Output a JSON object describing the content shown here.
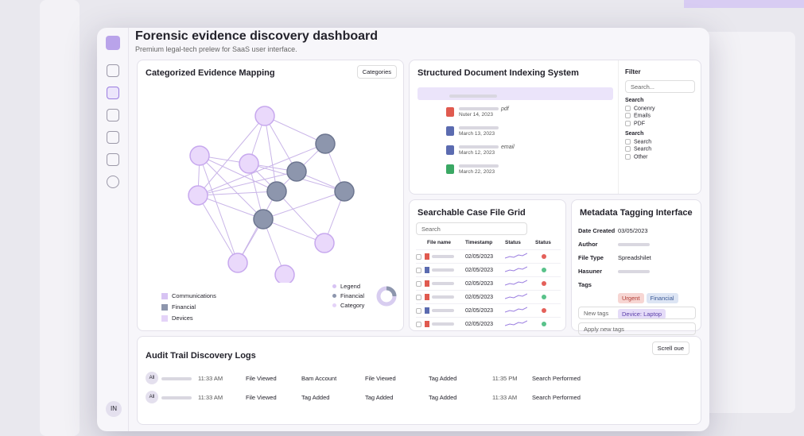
{
  "header": {
    "title": "Forensic evidence discovery dashboard",
    "subtitle": "Premium legal-tech prelew for SaaS user interface."
  },
  "sidebar": {
    "user": "IN"
  },
  "evidence_map": {
    "title": "Categorized Evidence Mapping",
    "button": "Categories",
    "legend": [
      "Communications",
      "Financial",
      "Devices"
    ],
    "legend_right": [
      "Legend",
      "Financial",
      "Category"
    ]
  },
  "indexing": {
    "title": "Structured Document Indexing System",
    "files": [
      {
        "type": "pdf",
        "date": "Nuter 14, 2023"
      },
      {
        "date": "March 13, 2023"
      },
      {
        "type": "email",
        "date": "March 12, 2023"
      },
      {
        "date": "March 22, 2023"
      }
    ]
  },
  "filter": {
    "title": "Filter",
    "search": "Search...",
    "groups": [
      {
        "title": "Search",
        "options": [
          "Conenry",
          "Emails",
          "PDF"
        ]
      },
      {
        "title": "Search",
        "options": [
          "Search",
          "Search",
          "Other"
        ]
      }
    ]
  },
  "case_grid": {
    "title": "Searchable Case File Grid",
    "search": "Search",
    "columns": [
      "File name",
      "Timestamp",
      "Status",
      "Status"
    ],
    "timestamps": [
      "02/05/2023",
      "02/05/2023",
      "02/05/2023",
      "02/05/2023",
      "02/05/2023",
      "02/05/2023"
    ]
  },
  "metadata": {
    "title": "Metadata Tagging Interface",
    "fields": [
      {
        "label": "Date Created",
        "value": "03/05/2023"
      },
      {
        "label": "Author"
      },
      {
        "label": "File Type",
        "value": "Spreadshilet"
      },
      {
        "label": "Hasuner"
      },
      {
        "label": "Tags"
      }
    ],
    "tags": [
      "Urgent",
      "Financial",
      "Device: Laptop"
    ],
    "inputs": [
      "New tags",
      "Apply new tags"
    ]
  },
  "audit": {
    "title": "Audit Trail Discovery Logs",
    "scroll_button": "Screll oue",
    "rows": [
      [
        "All",
        "11:33 AM",
        "File Viewed",
        "Bam Account",
        "File Viewed",
        "Tag Added",
        "11:35 PM",
        "Search Performed"
      ],
      [
        "All",
        "11:33 AM",
        "File Viewed",
        "Tag Added",
        "Tag Added",
        "Tag Added",
        "11:33 AM",
        "Search Performed"
      ]
    ]
  }
}
